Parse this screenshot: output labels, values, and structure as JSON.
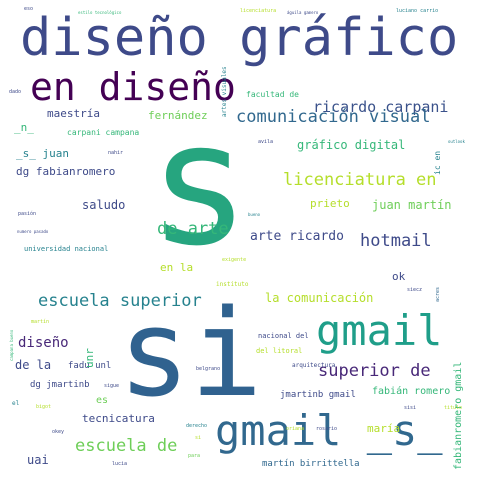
{
  "palette": {
    "purple": "#482878",
    "indigo": "#3e4a89",
    "blue": "#31688e",
    "teal": "#26828e",
    "green": "#1f9e89",
    "emerald": "#35b779",
    "lime": "#6ece58",
    "yellow": "#b5de2b",
    "dark": "#440154"
  },
  "words": [
    {
      "text": "diseño gráfico",
      "color": "#3e4a89"
    },
    {
      "text": "en diseño",
      "color": "#440154"
    },
    {
      "text": "s",
      "color": "#26a57f"
    },
    {
      "text": "si",
      "color": "#30628f"
    },
    {
      "text": "gmail",
      "color": "#1f9e89"
    },
    {
      "text": "gmail _s_",
      "color": "#31688e"
    },
    {
      "text": "ricardo carpani",
      "color": "#3b528b"
    },
    {
      "text": "comunicación visual",
      "color": "#31688e"
    },
    {
      "text": "licenciatura en",
      "color": "#b5de2b"
    },
    {
      "text": "de arte",
      "color": "#35b779"
    },
    {
      "text": "escuela superior",
      "color": "#26828e"
    },
    {
      "text": "hotmail",
      "color": "#3e4a89"
    },
    {
      "text": "arte ricardo",
      "color": "#3e4a89"
    },
    {
      "text": "superior de",
      "color": "#482878"
    },
    {
      "text": "escuela de",
      "color": "#6ece58"
    },
    {
      "text": "diseño",
      "color": "#482878"
    },
    {
      "text": "gráfico digital",
      "color": "#35b779"
    },
    {
      "text": "juan martín",
      "color": "#6ece58"
    },
    {
      "text": "la comunicación",
      "color": "#b5de2b"
    },
    {
      "text": "saludo",
      "color": "#3e4a89"
    },
    {
      "text": "maestría",
      "color": "#3e4a89"
    },
    {
      "text": "fernández",
      "color": "#6ece58"
    },
    {
      "text": "_n_",
      "color": "#35b779"
    },
    {
      "text": "_s_ juan",
      "color": "#26828e"
    },
    {
      "text": "dg fabianromero",
      "color": "#3e4a89"
    },
    {
      "text": "carpani campana",
      "color": "#35b779"
    },
    {
      "text": "prieto",
      "color": "#b5de2b"
    },
    {
      "text": "en la",
      "color": "#b5de2b"
    },
    {
      "text": "ok",
      "color": "#3e4a89"
    },
    {
      "text": "de la",
      "color": "#3e4a89"
    },
    {
      "text": "fadu unl",
      "color": "#3e4a89"
    },
    {
      "text": "dg jmartinb",
      "color": "#3e4a89"
    },
    {
      "text": "es",
      "color": "#6ece58"
    },
    {
      "text": "tecnicatura",
      "color": "#3e4a89"
    },
    {
      "text": "uai",
      "color": "#3e4a89"
    },
    {
      "text": "maría",
      "color": "#b5de2b"
    },
    {
      "text": "fabián romero",
      "color": "#35b779"
    },
    {
      "text": "jmartinb gmail",
      "color": "#3e4a89"
    },
    {
      "text": "martín birrittella",
      "color": "#31688e"
    },
    {
      "text": "facultad de",
      "color": "#35b779"
    },
    {
      "text": "universidad nacional",
      "color": "#26828e"
    },
    {
      "text": "nacional del",
      "color": "#3e4a89"
    },
    {
      "text": "del litoral",
      "color": "#b5de2b"
    },
    {
      "text": "arquitectura",
      "color": "#3e4a89"
    },
    {
      "text": "unr",
      "color": "#35b779"
    },
    {
      "text": "fabianromero gmail",
      "color": "#35b779"
    },
    {
      "text": "artes visuales",
      "color": "#26828e"
    },
    {
      "text": "ic en",
      "color": "#26828e"
    },
    {
      "text": "acres",
      "color": "#31688e"
    },
    {
      "text": "instituto",
      "color": "#b5de2b"
    },
    {
      "text": "eso",
      "color": "#3e4a89"
    },
    {
      "text": "estilo tecnológico",
      "color": "#35b779"
    },
    {
      "text": "licenciatura",
      "color": "#b5de2b"
    },
    {
      "text": "águila gamero",
      "color": "#3e4a89"
    },
    {
      "text": "luciano carrio",
      "color": "#26828e"
    },
    {
      "text": "dado",
      "color": "#3e4a89"
    },
    {
      "text": "nahir",
      "color": "#3e4a89"
    },
    {
      "text": "avila",
      "color": "#3e4a89"
    },
    {
      "text": "outlook",
      "color": "#26828e"
    },
    {
      "text": "pasión",
      "color": "#3e4a89"
    },
    {
      "text": "numero pasado",
      "color": "#3e4a89"
    },
    {
      "text": "belgrano",
      "color": "#3e4a89"
    },
    {
      "text": "rosario",
      "color": "#3e4a89"
    },
    {
      "text": "oriana",
      "color": "#b5de2b"
    },
    {
      "text": "okey",
      "color": "#3e4a89"
    },
    {
      "text": "lucia",
      "color": "#3e4a89"
    },
    {
      "text": "para",
      "color": "#6ece58"
    },
    {
      "text": "sisi",
      "color": "#3e4a89"
    },
    {
      "text": "titulo",
      "color": "#b5de2b"
    },
    {
      "text": "el",
      "color": "#26828e"
    },
    {
      "text": "bigot",
      "color": "#b5de2b"
    },
    {
      "text": "martín",
      "color": "#b5de2b"
    },
    {
      "text": "campana bueno",
      "color": "#35b779"
    },
    {
      "text": "sigue",
      "color": "#3e4a89"
    },
    {
      "text": "siecz",
      "color": "#3e4a89"
    },
    {
      "text": "bueno",
      "color": "#26828e"
    },
    {
      "text": "exigente",
      "color": "#b5de2b"
    },
    {
      "text": "derecho",
      "color": "#26828e"
    },
    {
      "text": "si",
      "color": "#b5de2b"
    }
  ]
}
